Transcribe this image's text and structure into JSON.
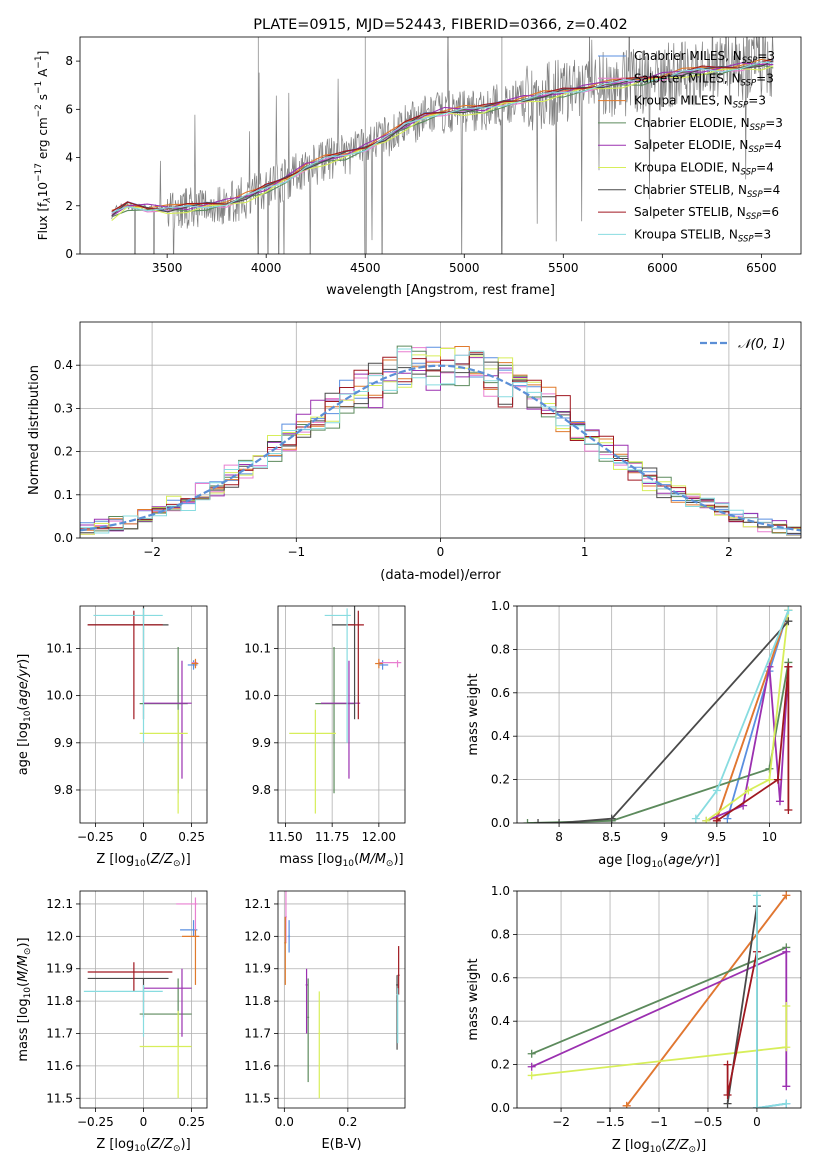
{
  "colors": {
    "Chabrier MILES": "#5a8fe0",
    "Salpeter MILES": "#e87fd0",
    "Kroupa MILES": "#e07a2c",
    "Chabrier ELODIE": "#5c8a5c",
    "Salpeter ELODIE": "#9b30b0",
    "Kroupa ELODIE": "#d7ee5a",
    "Chabrier STELIB": "#4a4a4a",
    "Salpeter STELIB": "#a01820",
    "Kroupa STELIB": "#88dce0",
    "gaussian": "#5b8fd6"
  },
  "chart_data": [
    {
      "id": "spectrum",
      "type": "line",
      "title": "PLATE=0915, MJD=52443, FIBERID=0366, z=0.402",
      "xlabel": "wavelength [Angstrom, rest frame]",
      "ylabel_html": "Flux [f<tspan font-style='italic' font-size='9' dy='3'>λ</tspan><tspan dy='-3'>10</tspan><tspan font-size='9' dy='-6'>−17</tspan><tspan dy='6'> erg cm</tspan><tspan font-size='9' dy='-6'>−2</tspan><tspan dy='6'> s</tspan><tspan font-size='9' dy='-6'>−1</tspan><tspan dy='6'> A</tspan><tspan font-size='9' dy='-6'>−1</tspan><tspan dy='6'>]</tspan>",
      "xlim": [
        3060,
        6700
      ],
      "ylim": [
        0,
        9
      ],
      "xticks": [
        3500,
        4000,
        4500,
        5000,
        5500,
        6000,
        6500
      ],
      "yticks": [
        0,
        2,
        4,
        6,
        8
      ],
      "grid": false,
      "legend_position": "top-right",
      "legend": [
        {
          "prefix": "Chabrier MILES, N",
          "n": "3"
        },
        {
          "prefix": "Salpeter MILES, N",
          "n": "3"
        },
        {
          "prefix": "Kroupa MILES, N",
          "n": "3"
        },
        {
          "prefix": "Chabrier ELODIE, N",
          "n": "3"
        },
        {
          "prefix": "Salpeter ELODIE, N",
          "n": "4"
        },
        {
          "prefix": "Kroupa ELODIE, N",
          "n": "4"
        },
        {
          "prefix": "Chabrier STELIB, N",
          "n": "4"
        },
        {
          "prefix": "Salpeter STELIB, N",
          "n": "6"
        },
        {
          "prefix": "Kroupa STELIB, N",
          "n": "3"
        }
      ],
      "legend_sub": "SSP",
      "data_x": [
        3220,
        3250,
        3300,
        3400,
        3500,
        3600,
        3700,
        3800,
        3900,
        4000,
        4100,
        4200,
        4300,
        4400,
        4500,
        4600,
        4700,
        4800,
        4900,
        5000,
        5100,
        5200,
        5300,
        5400,
        5500,
        5600,
        5700,
        5800,
        5900,
        6000,
        6100,
        6200,
        6300,
        6400,
        6500,
        6560
      ],
      "data_y": [
        1.6,
        1.95,
        2.0,
        1.9,
        1.85,
        1.9,
        2.0,
        2.1,
        2.35,
        2.7,
        3.1,
        3.6,
        3.9,
        4.1,
        4.4,
        4.8,
        5.3,
        5.7,
        5.9,
        5.95,
        6.0,
        6.25,
        6.4,
        6.55,
        6.7,
        6.85,
        7.0,
        7.1,
        7.2,
        7.35,
        7.5,
        7.6,
        7.65,
        7.75,
        7.85,
        7.9
      ],
      "model_x": [
        3220,
        3300,
        3400,
        3500,
        3600,
        3700,
        3800,
        3900,
        4000,
        4100,
        4200,
        4300,
        4400,
        4500,
        4600,
        4700,
        4800,
        4900,
        5000,
        5100,
        5200,
        5300,
        5400,
        5500,
        5600,
        5700,
        5800,
        5900,
        6000,
        6100,
        6200,
        6300,
        6400,
        6500,
        6560
      ],
      "model_y": [
        1.6,
        2.0,
        1.9,
        1.85,
        1.9,
        2.0,
        2.1,
        2.35,
        2.7,
        3.1,
        3.6,
        3.9,
        4.1,
        4.4,
        4.8,
        5.3,
        5.7,
        5.9,
        5.95,
        6.0,
        6.25,
        6.4,
        6.55,
        6.7,
        6.85,
        7.0,
        7.1,
        7.2,
        7.35,
        7.5,
        7.6,
        7.65,
        7.75,
        7.85,
        7.9
      ]
    },
    {
      "id": "residuals",
      "type": "line",
      "xlabel": "(data-model)/error",
      "ylabel": "Normed distribution",
      "xlim": [
        -2.5,
        2.5
      ],
      "ylim": [
        0,
        0.5
      ],
      "xticks": [
        -2,
        -1,
        0,
        1,
        2
      ],
      "yticks": [
        0.0,
        0.1,
        0.2,
        0.3,
        0.4
      ],
      "grid": true,
      "legend_position": "top-right",
      "gaussian_label": "𝒩(0, 1)"
    },
    {
      "id": "age-vs-Z",
      "type": "scatter",
      "xlabel": "Z [log₁₀(Z/Z⊙)]",
      "ylabel": "age  [log₁₀(age/yr)]",
      "xlim": [
        -0.33,
        0.33
      ],
      "ylim": [
        9.73,
        10.19
      ],
      "xticks": [
        -0.25,
        0.0,
        0.25
      ],
      "yticks": [
        9.8,
        9.9,
        10.0,
        10.1
      ],
      "grid": true,
      "points": [
        {
          "m": "Chabrier MILES",
          "x": 0.26,
          "y": 10.065,
          "xerr": [
            0.03,
            0.02
          ],
          "yerr": [
            0.01,
            0.01
          ]
        },
        {
          "m": "Salpeter MILES",
          "x": 0.27,
          "y": 10.07,
          "xerr": [
            0.02,
            0.01
          ],
          "yerr": [
            0.01,
            0.005
          ]
        },
        {
          "m": "Kroupa MILES",
          "x": 0.27,
          "y": 10.068,
          "xerr": [
            0.02,
            0.015
          ],
          "yerr": [
            0.01,
            0.01
          ]
        },
        {
          "m": "Chabrier ELODIE",
          "x": 0.18,
          "y": 9.983,
          "xerr": [
            0.2,
            0.05
          ],
          "yerr": [
            0.19,
            0.12
          ]
        },
        {
          "m": "Salpeter ELODIE",
          "x": 0.2,
          "y": 9.984,
          "xerr": [
            0.2,
            0.05
          ],
          "yerr": [
            0.16,
            0.09
          ]
        },
        {
          "m": "Kroupa ELODIE",
          "x": 0.18,
          "y": 9.92,
          "xerr": [
            0.2,
            0.05
          ],
          "yerr": [
            0.17,
            0.05
          ]
        },
        {
          "m": "Chabrier STELIB",
          "x": 0.0,
          "y": 10.15,
          "xerr": [
            0.29,
            0.13
          ],
          "yerr": [
            0.2,
            0.04
          ]
        },
        {
          "m": "Salpeter STELIB",
          "x": -0.05,
          "y": 10.15,
          "xerr": [
            0.24,
            0.15
          ],
          "yerr": [
            0.2,
            0.03
          ]
        },
        {
          "m": "Kroupa STELIB",
          "x": 0.0,
          "y": 10.17,
          "xerr": [
            0.26,
            0.1
          ],
          "yerr": [
            0.27,
            0.015
          ]
        }
      ]
    },
    {
      "id": "age-vs-mass",
      "type": "scatter",
      "xlabel": "mass [log₁₀(M/M⊙)]",
      "ylabel": "",
      "xlim": [
        11.46,
        12.14
      ],
      "ylim": [
        9.73,
        10.19
      ],
      "xticks": [
        11.5,
        11.75,
        12.0
      ],
      "xtick_labels": [
        "11.50",
        "11.75",
        "12.00"
      ],
      "yticks": [
        9.8,
        9.9,
        10.0,
        10.1
      ],
      "grid": true,
      "points": [
        {
          "m": "Chabrier MILES",
          "x": 12.02,
          "y": 10.065,
          "xerr": [
            0.02,
            0.03
          ],
          "yerr": [
            0.01,
            0.01
          ]
        },
        {
          "m": "Salpeter MILES",
          "x": 12.1,
          "y": 10.07,
          "xerr": [
            0.1,
            0.02
          ],
          "yerr": [
            0.01,
            0.005
          ]
        },
        {
          "m": "Kroupa MILES",
          "x": 12.0,
          "y": 10.068,
          "xerr": [
            0.02,
            0.02
          ],
          "yerr": [
            0.01,
            0.01
          ]
        },
        {
          "m": "Chabrier ELODIE",
          "x": 11.76,
          "y": 9.983,
          "xerr": [
            0.1,
            0.11
          ],
          "yerr": [
            0.19,
            0.12
          ]
        },
        {
          "m": "Salpeter ELODIE",
          "x": 11.84,
          "y": 9.984,
          "xerr": [
            0.15,
            0.06
          ],
          "yerr": [
            0.16,
            0.09
          ]
        },
        {
          "m": "Kroupa ELODIE",
          "x": 11.66,
          "y": 9.92,
          "xerr": [
            0.14,
            0.11
          ],
          "yerr": [
            0.17,
            0.05
          ]
        },
        {
          "m": "Chabrier STELIB",
          "x": 11.87,
          "y": 10.15,
          "xerr": [
            0.12,
            0.0
          ],
          "yerr": [
            0.2,
            0.04
          ]
        },
        {
          "m": "Salpeter STELIB",
          "x": 11.89,
          "y": 10.15,
          "xerr": [
            0.06,
            0.03
          ],
          "yerr": [
            0.2,
            0.03
          ]
        },
        {
          "m": "Kroupa STELIB",
          "x": 11.83,
          "y": 10.17,
          "xerr": [
            0.12,
            0.02
          ],
          "yerr": [
            0.27,
            0.015
          ]
        }
      ]
    },
    {
      "id": "weight-vs-age",
      "type": "line",
      "xlabel": "age  [log₁₀(age/yr)]",
      "ylabel": "mass weight",
      "xlim": [
        7.6,
        10.3
      ],
      "ylim": [
        0,
        1
      ],
      "xticks": [
        8.0,
        8.5,
        9.0,
        9.5,
        10.0
      ],
      "yticks": [
        0.0,
        0.2,
        0.4,
        0.6,
        0.8,
        1.0
      ],
      "grid": true,
      "series": [
        {
          "m": "Chabrier MILES",
          "x": [
            9.6,
            10.0,
            10.18
          ],
          "y": [
            0.02,
            0.7,
            0.98
          ]
        },
        {
          "m": "Salpeter MILES",
          "x": [
            9.5,
            10.18
          ],
          "y": [
            0.02,
            0.98
          ]
        },
        {
          "m": "Kroupa MILES",
          "x": [
            9.5,
            10.18
          ],
          "y": [
            0.02,
            0.98
          ]
        },
        {
          "m": "Chabrier ELODIE",
          "x": [
            7.7,
            8.5,
            10.0,
            10.18
          ],
          "y": [
            0.0,
            0.01,
            0.25,
            0.74
          ]
        },
        {
          "m": "Salpeter ELODIE",
          "x": [
            9.4,
            9.75,
            10.0,
            10.1,
            10.18
          ],
          "y": [
            0.01,
            0.08,
            0.72,
            0.1,
            0.72
          ]
        },
        {
          "m": "Kroupa ELODIE",
          "x": [
            9.4,
            9.8,
            10.0,
            10.18
          ],
          "y": [
            0.01,
            0.15,
            0.2,
            0.98
          ]
        },
        {
          "m": "Chabrier STELIB",
          "x": [
            7.8,
            8.0,
            8.5,
            10.18
          ],
          "y": [
            0.0,
            0.0,
            0.02,
            0.93
          ]
        },
        {
          "m": "Salpeter STELIB",
          "x": [
            9.5,
            10.08,
            10.18,
            10.18
          ],
          "y": [
            0.01,
            0.2,
            0.72,
            0.06
          ]
        },
        {
          "m": "Kroupa STELIB",
          "x": [
            9.3,
            9.5,
            10.18
          ],
          "y": [
            0.02,
            0.15,
            0.98
          ]
        }
      ]
    },
    {
      "id": "mass-vs-Z",
      "type": "scatter",
      "xlabel": "Z [log₁₀(Z/Z⊙)]",
      "ylabel": "mass [log₁₀(M/M⊙)]",
      "xlim": [
        -0.33,
        0.33
      ],
      "ylim": [
        11.47,
        12.14
      ],
      "xticks": [
        -0.25,
        0.0,
        0.25
      ],
      "yticks": [
        11.5,
        11.6,
        11.7,
        11.8,
        11.9,
        12.0,
        12.1
      ],
      "grid": true,
      "points": [
        {
          "m": "Chabrier MILES",
          "x": 0.26,
          "y": 12.02,
          "xerr": [
            0.07,
            0.02
          ],
          "yerr": [
            0.02,
            0.03
          ]
        },
        {
          "m": "Salpeter MILES",
          "x": 0.27,
          "y": 12.1,
          "xerr": [
            0.1,
            0.01
          ],
          "yerr": [
            0.1,
            0.02
          ]
        },
        {
          "m": "Kroupa MILES",
          "x": 0.27,
          "y": 12.0,
          "xerr": [
            0.07,
            0.02
          ],
          "yerr": [
            0.15,
            0.02
          ]
        },
        {
          "m": "Chabrier ELODIE",
          "x": 0.18,
          "y": 11.76,
          "xerr": [
            0.2,
            0.07
          ],
          "yerr": [
            0.1,
            0.11
          ]
        },
        {
          "m": "Salpeter ELODIE",
          "x": 0.2,
          "y": 11.84,
          "xerr": [
            0.2,
            0.05
          ],
          "yerr": [
            0.15,
            0.06
          ]
        },
        {
          "m": "Kroupa ELODIE",
          "x": 0.18,
          "y": 11.66,
          "xerr": [
            0.2,
            0.07
          ],
          "yerr": [
            0.16,
            0.11
          ]
        },
        {
          "m": "Chabrier STELIB",
          "x": 0.0,
          "y": 11.87,
          "xerr": [
            0.29,
            0.13
          ],
          "yerr": [
            0.12,
            0.0
          ]
        },
        {
          "m": "Salpeter STELIB",
          "x": -0.05,
          "y": 11.89,
          "xerr": [
            0.24,
            0.2
          ],
          "yerr": [
            0.06,
            0.03
          ]
        },
        {
          "m": "Kroupa STELIB",
          "x": 0.0,
          "y": 11.83,
          "xerr": [
            0.31,
            0.1
          ],
          "yerr": [
            0.14,
            0.02
          ]
        }
      ]
    },
    {
      "id": "mass-vs-ebv",
      "type": "scatter",
      "xlabel": "E(B-V)",
      "ylabel": "",
      "xlim": [
        -0.02,
        0.38
      ],
      "ylim": [
        11.47,
        12.14
      ],
      "xticks": [
        0.0,
        0.2
      ],
      "xtick_labels": [
        "0.0",
        "0.2"
      ],
      "yticks": [
        11.5,
        11.6,
        11.7,
        11.8,
        11.9,
        12.0,
        12.1
      ],
      "grid": true,
      "points": [
        {
          "m": "Chabrier MILES",
          "x": 0.015,
          "y": 12.0,
          "xerr": [
            0.003,
            0.003
          ],
          "yerr": [
            0.05,
            0.05
          ]
        },
        {
          "m": "Salpeter MILES",
          "x": 0.005,
          "y": 12.06,
          "xerr": [
            0.003,
            0.003
          ],
          "yerr": [
            0.08,
            0.08
          ]
        },
        {
          "m": "Kroupa MILES",
          "x": 0.003,
          "y": 11.98,
          "xerr": [
            0.003,
            0.003
          ],
          "yerr": [
            0.13,
            0.08
          ]
        },
        {
          "m": "Chabrier ELODIE",
          "x": 0.075,
          "y": 11.75,
          "xerr": [
            0.003,
            0.003
          ],
          "yerr": [
            0.2,
            0.12
          ]
        },
        {
          "m": "Salpeter ELODIE",
          "x": 0.07,
          "y": 11.85,
          "xerr": [
            0.003,
            0.003
          ],
          "yerr": [
            0.15,
            0.05
          ]
        },
        {
          "m": "Kroupa ELODIE",
          "x": 0.11,
          "y": 11.7,
          "xerr": [
            0.003,
            0.003
          ],
          "yerr": [
            0.2,
            0.13
          ]
        },
        {
          "m": "Chabrier STELIB",
          "x": 0.355,
          "y": 11.85,
          "xerr": [
            0.003,
            0.003
          ],
          "yerr": [
            0.2,
            0.03
          ]
        },
        {
          "m": "Salpeter STELIB",
          "x": 0.36,
          "y": 11.88,
          "xerr": [
            0.003,
            0.003
          ],
          "yerr": [
            0.06,
            0.09
          ]
        },
        {
          "m": "Kroupa STELIB",
          "x": 0.357,
          "y": 11.82,
          "xerr": [
            0.003,
            0.003
          ],
          "yerr": [
            0.15,
            0.02
          ]
        }
      ]
    },
    {
      "id": "weight-vs-Z",
      "type": "line",
      "xlabel": "Z [log₁₀(Z/Z⊙)]",
      "ylabel": "mass weight",
      "xlim": [
        -2.45,
        0.45
      ],
      "ylim": [
        0,
        1
      ],
      "xticks": [
        -2.0,
        -1.5,
        -1.0,
        -0.5,
        0.0
      ],
      "yticks": [
        0.0,
        0.2,
        0.4,
        0.6,
        0.8,
        1.0
      ],
      "grid": true,
      "series": [
        {
          "m": "Chabrier MILES",
          "x": [
            0.0,
            0.3
          ],
          "y": [
            0.0,
            0.02
          ]
        },
        {
          "m": "Salpeter MILES",
          "x": [
            -1.33,
            0.3
          ],
          "y": [
            0.01,
            0.98
          ]
        },
        {
          "m": "Kroupa MILES",
          "x": [
            -1.33,
            0.3
          ],
          "y": [
            0.01,
            0.98
          ]
        },
        {
          "m": "Chabrier ELODIE",
          "x": [
            -2.3,
            0.3
          ],
          "y": [
            0.25,
            0.74
          ]
        },
        {
          "m": "Salpeter ELODIE",
          "x": [
            -2.3,
            0.3,
            0.3
          ],
          "y": [
            0.19,
            0.72,
            0.1
          ]
        },
        {
          "m": "Kroupa ELODIE",
          "x": [
            -2.3,
            0.3,
            0.3
          ],
          "y": [
            0.15,
            0.28,
            0.47
          ]
        },
        {
          "m": "Chabrier STELIB",
          "x": [
            -0.3,
            0.0,
            0.0
          ],
          "y": [
            0.02,
            0.93,
            0.0
          ]
        },
        {
          "m": "Salpeter STELIB",
          "x": [
            -0.3,
            -0.3,
            0.0
          ],
          "y": [
            0.2,
            0.06,
            0.72
          ]
        },
        {
          "m": "Kroupa STELIB",
          "x": [
            0.0,
            0.0,
            0.3
          ],
          "y": [
            0.98,
            0.0,
            0.02
          ]
        }
      ]
    }
  ]
}
